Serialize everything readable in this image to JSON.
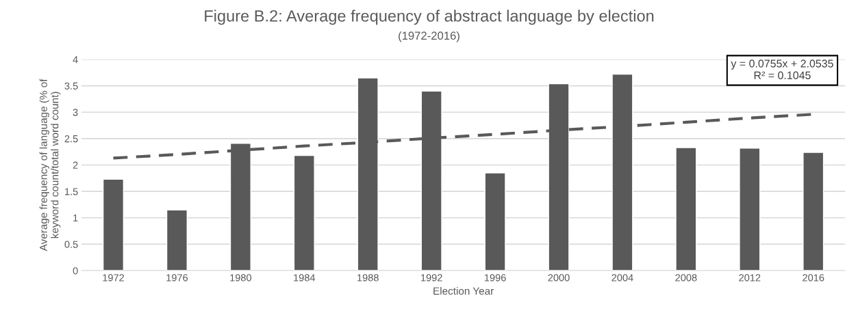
{
  "chart_data": {
    "type": "bar",
    "title": "Figure B.2: Average frequency of abstract language by election",
    "subtitle": "(1972-2016)",
    "xlabel": "Election Year",
    "ylabel": "Average frequency of language (% of\nkeyword count/total word count)",
    "categories": [
      "1972",
      "1976",
      "1980",
      "1984",
      "1988",
      "1992",
      "1996",
      "2000",
      "2004",
      "2008",
      "2012",
      "2016"
    ],
    "series": [
      {
        "color": "#595959",
        "values": [
          1.73,
          1.15,
          2.41,
          2.18,
          3.65,
          3.4,
          1.85,
          3.54,
          3.72,
          2.33,
          2.32,
          2.24
        ]
      },
      {
        "type": "line",
        "color": "#595959",
        "values": [
          2.13,
          2.2,
          2.28,
          2.36,
          2.43,
          2.51,
          2.58,
          2.66,
          2.73,
          2.81,
          2.89,
          2.96
        ],
        "line_style": "dashed"
      }
    ],
    "ylim": [
      0,
      4
    ],
    "yticks": [
      0,
      0.5,
      1,
      1.5,
      2,
      2.5,
      3,
      3.5,
      4
    ],
    "grid": "y",
    "legend": false,
    "annotations": [
      "y = 0.0755x + 2.0535\nR² = 0.1045"
    ]
  }
}
